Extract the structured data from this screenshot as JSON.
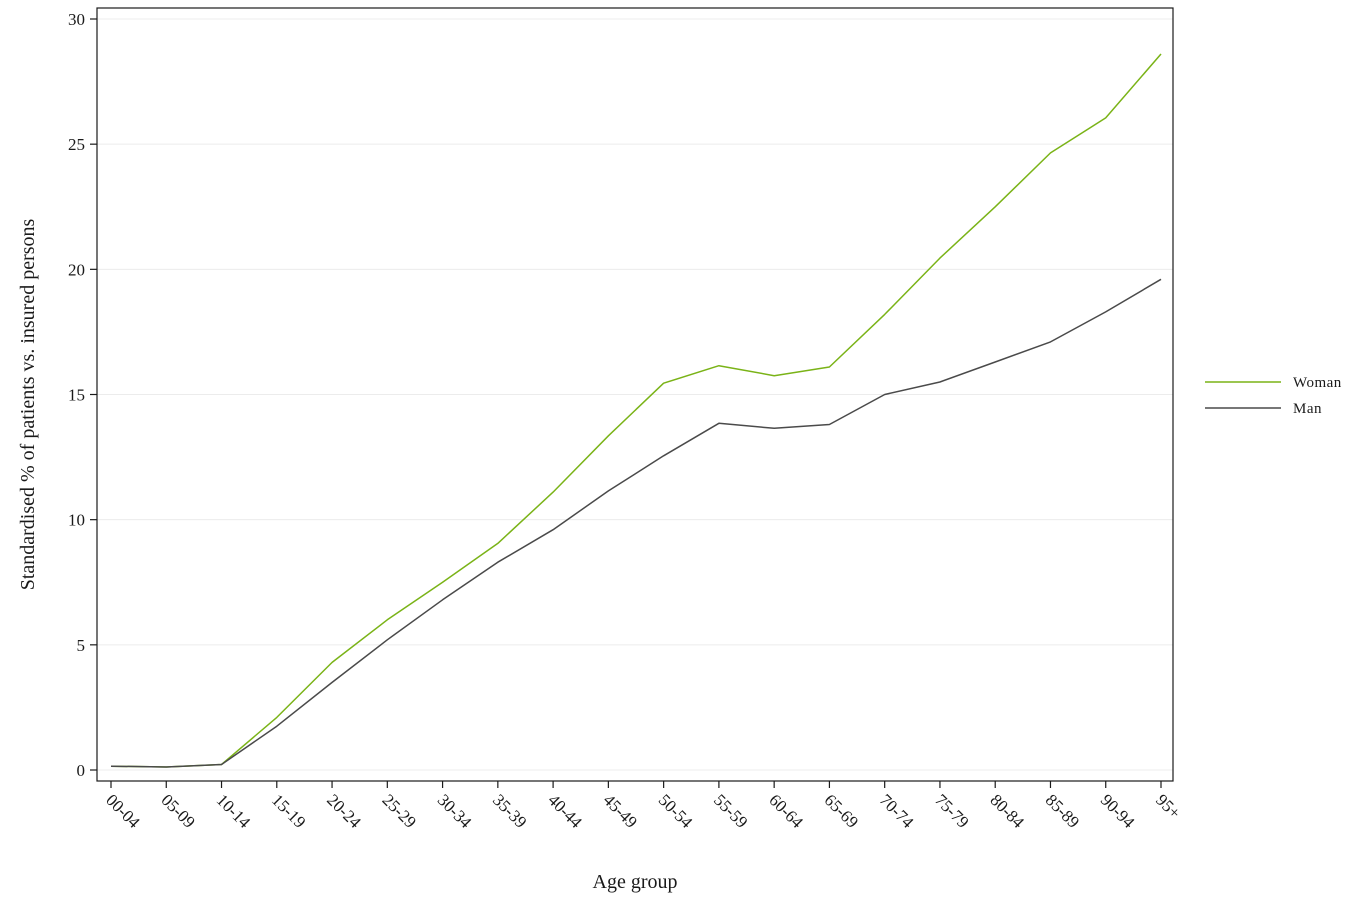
{
  "chart_data": {
    "type": "line",
    "xlabel": "Age group",
    "ylabel": "Standardised % of patients vs. insured persons",
    "categories": [
      "00-04",
      "05-09",
      "10-14",
      "15-19",
      "20-24",
      "25-29",
      "30-34",
      "35-39",
      "40-44",
      "45-49",
      "50-54",
      "55-59",
      "60-64",
      "65-69",
      "70-74",
      "75-79",
      "80-84",
      "85-89",
      "90-94",
      "95+"
    ],
    "ylim": [
      0,
      30
    ],
    "yticks": [
      0,
      5,
      10,
      15,
      20,
      25,
      30
    ],
    "grid": true,
    "legend_position": "right",
    "series": [
      {
        "name": "Woman",
        "color": "#7ab317",
        "values": [
          0.15,
          0.12,
          0.22,
          2.1,
          4.3,
          6.0,
          7.5,
          9.05,
          11.1,
          13.35,
          15.45,
          16.15,
          15.75,
          16.1,
          18.2,
          20.45,
          22.5,
          24.65,
          26.05,
          28.6
        ]
      },
      {
        "name": "Man",
        "color": "#4a4a4a",
        "values": [
          0.15,
          0.12,
          0.22,
          1.75,
          3.5,
          5.2,
          6.8,
          8.3,
          9.6,
          11.15,
          12.55,
          13.85,
          13.65,
          13.8,
          15.0,
          15.5,
          16.3,
          17.1,
          18.3,
          19.6
        ]
      }
    ]
  }
}
